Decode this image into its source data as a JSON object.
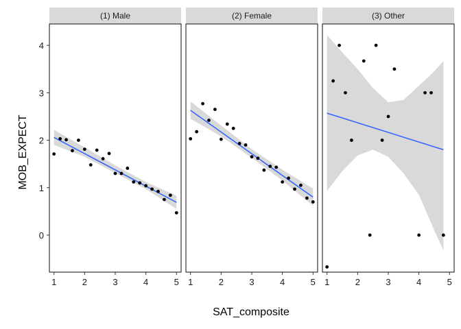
{
  "chart_data": {
    "type": "scatter",
    "xlabel": "SAT_composite",
    "ylabel": "MOB_EXPECT",
    "xlim": [
      0.85,
      5.15
    ],
    "ylim": [
      -0.78,
      4.45
    ],
    "x_ticks": [
      1,
      2,
      3,
      4,
      5
    ],
    "y_ticks": [
      0,
      1,
      2,
      3,
      4
    ],
    "grid": false,
    "colors": {
      "points": "#000000",
      "fit_line": "#3366FF",
      "ribbon": "#D9D9D9",
      "strip_fill": "#D9D9D9",
      "panel_border": "#333333"
    },
    "panels": [
      {
        "label": "(1) Male",
        "points": [
          {
            "x": 1.0,
            "y": 1.71
          },
          {
            "x": 1.2,
            "y": 2.03
          },
          {
            "x": 1.4,
            "y": 2.01
          },
          {
            "x": 1.6,
            "y": 1.78
          },
          {
            "x": 1.8,
            "y": 2.0
          },
          {
            "x": 2.0,
            "y": 1.81
          },
          {
            "x": 2.2,
            "y": 1.48
          },
          {
            "x": 2.4,
            "y": 1.79
          },
          {
            "x": 2.6,
            "y": 1.61
          },
          {
            "x": 2.8,
            "y": 1.72
          },
          {
            "x": 3.0,
            "y": 1.3
          },
          {
            "x": 3.2,
            "y": 1.3
          },
          {
            "x": 3.4,
            "y": 1.41
          },
          {
            "x": 3.6,
            "y": 1.12
          },
          {
            "x": 3.8,
            "y": 1.1
          },
          {
            "x": 4.0,
            "y": 1.04
          },
          {
            "x": 4.2,
            "y": 0.97
          },
          {
            "x": 4.4,
            "y": 0.92
          },
          {
            "x": 4.6,
            "y": 0.75
          },
          {
            "x": 4.8,
            "y": 0.84
          },
          {
            "x": 5.0,
            "y": 0.47
          }
        ],
        "fit": {
          "x": [
            1.0,
            5.0
          ],
          "y": [
            2.06,
            0.69
          ]
        },
        "ribbon": {
          "x": [
            1.0,
            2.0,
            3.0,
            4.0,
            5.0
          ],
          "lower": [
            1.9,
            1.65,
            1.31,
            0.97,
            0.55
          ],
          "upper": [
            2.22,
            1.85,
            1.47,
            1.12,
            0.83
          ]
        }
      },
      {
        "label": "(2) Female",
        "points": [
          {
            "x": 1.0,
            "y": 2.03
          },
          {
            "x": 1.2,
            "y": 2.18
          },
          {
            "x": 1.4,
            "y": 2.77
          },
          {
            "x": 1.6,
            "y": 2.42
          },
          {
            "x": 1.8,
            "y": 2.65
          },
          {
            "x": 2.0,
            "y": 2.02
          },
          {
            "x": 2.2,
            "y": 2.34
          },
          {
            "x": 2.4,
            "y": 2.25
          },
          {
            "x": 2.6,
            "y": 1.93
          },
          {
            "x": 2.8,
            "y": 1.9
          },
          {
            "x": 3.0,
            "y": 1.65
          },
          {
            "x": 3.2,
            "y": 1.62
          },
          {
            "x": 3.4,
            "y": 1.37
          },
          {
            "x": 3.6,
            "y": 1.45
          },
          {
            "x": 3.8,
            "y": 1.43
          },
          {
            "x": 4.0,
            "y": 1.12
          },
          {
            "x": 4.2,
            "y": 1.2
          },
          {
            "x": 4.4,
            "y": 0.97
          },
          {
            "x": 4.6,
            "y": 1.05
          },
          {
            "x": 4.8,
            "y": 0.78
          },
          {
            "x": 5.0,
            "y": 0.7
          }
        ],
        "fit": {
          "x": [
            1.0,
            5.0
          ],
          "y": [
            2.63,
            0.8
          ]
        },
        "ribbon": {
          "x": [
            1.0,
            2.0,
            3.0,
            4.0,
            5.0
          ],
          "lower": [
            2.45,
            2.08,
            1.63,
            1.15,
            0.62
          ],
          "upper": [
            2.82,
            2.31,
            1.81,
            1.38,
            0.98
          ]
        }
      },
      {
        "label": "(3) Other",
        "points": [
          {
            "x": 1.0,
            "y": -0.67
          },
          {
            "x": 1.2,
            "y": 3.25
          },
          {
            "x": 1.4,
            "y": 4.0
          },
          {
            "x": 1.6,
            "y": 3.0
          },
          {
            "x": 1.8,
            "y": 2.0
          },
          {
            "x": 2.2,
            "y": 3.67
          },
          {
            "x": 2.4,
            "y": 0.0
          },
          {
            "x": 2.6,
            "y": 4.0
          },
          {
            "x": 2.8,
            "y": 2.0
          },
          {
            "x": 3.0,
            "y": 2.5
          },
          {
            "x": 3.2,
            "y": 3.5
          },
          {
            "x": 4.0,
            "y": 0.0
          },
          {
            "x": 4.2,
            "y": 3.0
          },
          {
            "x": 4.4,
            "y": 3.0
          },
          {
            "x": 4.8,
            "y": 0.0
          }
        ],
        "fit": {
          "x": [
            1.0,
            4.8
          ],
          "y": [
            2.57,
            1.8
          ]
        },
        "ribbon": {
          "x": [
            1.0,
            1.5,
            2.0,
            2.5,
            3.0,
            3.5,
            4.0,
            4.5,
            4.8
          ],
          "lower": [
            0.93,
            1.35,
            1.68,
            1.8,
            1.65,
            1.3,
            0.85,
            0.1,
            -0.32
          ],
          "upper": [
            4.22,
            3.85,
            3.5,
            3.1,
            2.8,
            2.85,
            3.15,
            3.45,
            3.67
          ]
        }
      }
    ]
  }
}
